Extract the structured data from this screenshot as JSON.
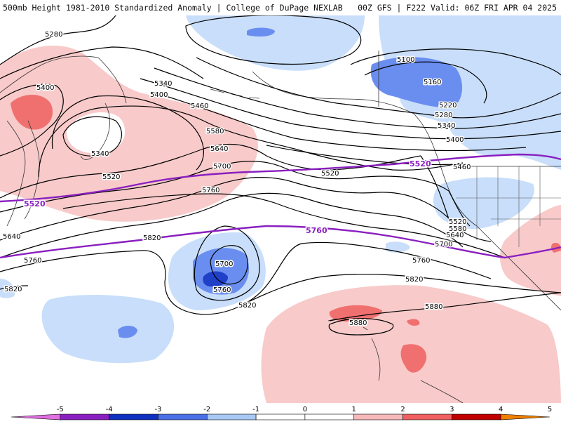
{
  "header": {
    "left_title": "500mb Height 1981-2010 Standardized Anomaly | College of DuPage NEXLAB",
    "right_title": "00Z GFS | F222 Valid: 06Z FRI APR 04 2025"
  },
  "contour_labels": [
    {
      "id": "c5280a",
      "text": "5280"
    },
    {
      "id": "c5400a",
      "text": "5400"
    },
    {
      "id": "c5340a",
      "text": "5340"
    },
    {
      "id": "c5400b",
      "text": "5400"
    },
    {
      "id": "c5460a",
      "text": "5460"
    },
    {
      "id": "c5580a",
      "text": "5580"
    },
    {
      "id": "c5640a",
      "text": "5640"
    },
    {
      "id": "c5700a",
      "text": "5700"
    },
    {
      "id": "c5760a",
      "text": "5760"
    },
    {
      "id": "c5340b",
      "text": "5340"
    },
    {
      "id": "c5520a",
      "text": "5520"
    },
    {
      "id": "c5820a",
      "text": "5820"
    },
    {
      "id": "c5640b",
      "text": "5640"
    },
    {
      "id": "c5760b",
      "text": "5760"
    },
    {
      "id": "c5820b",
      "text": "5820"
    },
    {
      "id": "c5700b",
      "text": "5700"
    },
    {
      "id": "c5760c",
      "text": "5760"
    },
    {
      "id": "c5820c",
      "text": "5820"
    },
    {
      "id": "c5520b",
      "text": "5520"
    },
    {
      "id": "c5100",
      "text": "5100"
    },
    {
      "id": "c5160",
      "text": "5160"
    },
    {
      "id": "c5220",
      "text": "5220"
    },
    {
      "id": "c5280b",
      "text": "5280"
    },
    {
      "id": "c5340c",
      "text": "5340"
    },
    {
      "id": "c5400c",
      "text": "5400"
    },
    {
      "id": "c5460b",
      "text": "5460"
    },
    {
      "id": "c5520c",
      "text": "5520"
    },
    {
      "id": "c5580b",
      "text": "5580"
    },
    {
      "id": "c5640c",
      "text": "5640"
    },
    {
      "id": "c5700c",
      "text": "5700"
    },
    {
      "id": "c5760d",
      "text": "5760"
    },
    {
      "id": "c5820d",
      "text": "5820"
    },
    {
      "id": "c5880a",
      "text": "5880"
    },
    {
      "id": "c5880b",
      "text": "5880"
    }
  ],
  "purple_labels": [
    {
      "id": "p5520a",
      "text": "5520"
    },
    {
      "id": "p5520b",
      "text": "5520"
    },
    {
      "id": "p5760",
      "text": "5760"
    }
  ],
  "colorbar": {
    "ticks": [
      "-5",
      "-4",
      "-3",
      "-2",
      "-1",
      "0",
      "1",
      "2",
      "3",
      "4",
      "5"
    ],
    "colors": [
      "#e070e0",
      "#8a1fc0",
      "#1030c0",
      "#4a70e8",
      "#a8c8f4",
      "#ffffff",
      "#ffffff",
      "#f6b8b8",
      "#f06060",
      "#c00000",
      "#f08000"
    ],
    "colors_right_end": "#f0c000"
  },
  "anomaly_colors": {
    "weak_positive": "#f8caca",
    "mod_positive": "#f07070",
    "weak_negative": "#c8defa",
    "mod_negative": "#6a8ef0",
    "strong_negative": "#2040c8"
  }
}
